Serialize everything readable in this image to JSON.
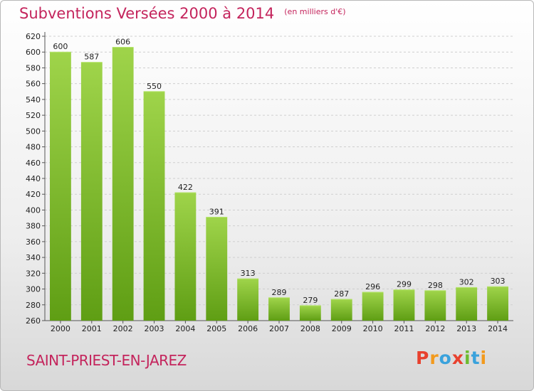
{
  "header": {
    "title": "Subventions Versées 2000 à 2014",
    "subtitle": "(en milliers d'€)"
  },
  "footer": {
    "commune": "SAINT-PRIEST-EN-JAREZ",
    "logo_text": "Proxiti",
    "logo_colors": [
      "#e8412e",
      "#f29a1d",
      "#3aa2dc",
      "#e8412e",
      "#6dbb2f",
      "#3aa2dc",
      "#f29a1d"
    ]
  },
  "chart_data": {
    "type": "bar",
    "title": "Subventions Versées 2000 à 2014",
    "subtitle": "(en milliers d'€)",
    "categories": [
      "2000",
      "2001",
      "2002",
      "2003",
      "2004",
      "2005",
      "2006",
      "2007",
      "2008",
      "2009",
      "2010",
      "2011",
      "2012",
      "2013",
      "2014"
    ],
    "values": [
      600,
      587,
      606,
      550,
      422,
      391,
      313,
      289,
      279,
      287,
      296,
      299,
      298,
      302,
      303
    ],
    "data_labels": [
      "600",
      "587",
      "606",
      "550",
      "422",
      "391",
      "313",
      "289",
      "279",
      "287",
      "296",
      "299",
      "298",
      "302",
      "303"
    ],
    "yticks": [
      "260",
      "280",
      "300",
      "320",
      "340",
      "360",
      "380",
      "400",
      "420",
      "440",
      "460",
      "480",
      "500",
      "520",
      "540",
      "560",
      "580",
      "600",
      "620"
    ],
    "ylim": [
      260,
      620
    ],
    "xlabel": "",
    "ylabel": "",
    "grid": true,
    "bar_color": "#7fbf2a"
  }
}
